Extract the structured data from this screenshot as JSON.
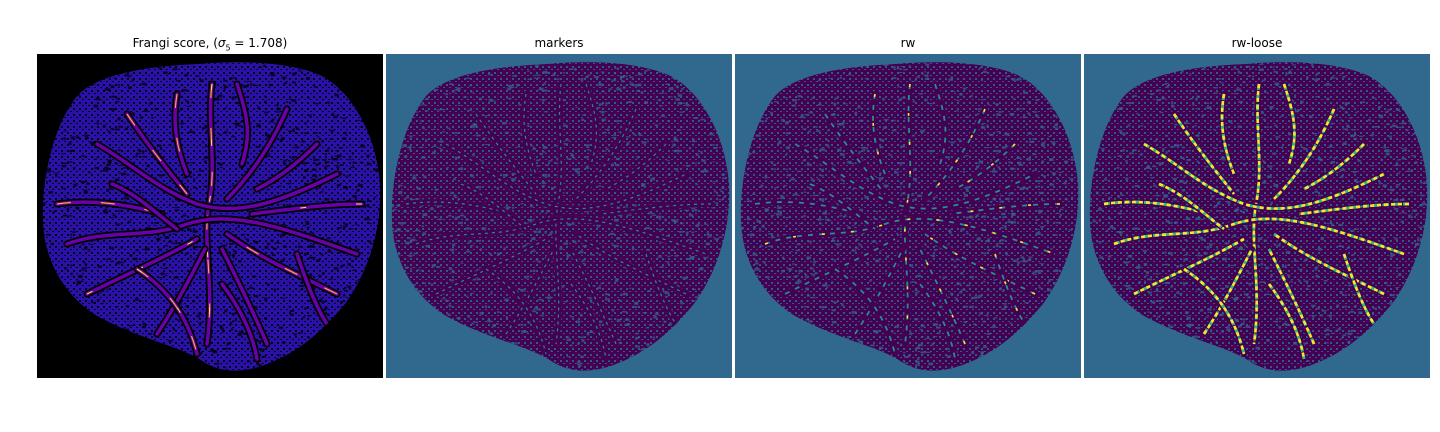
{
  "panels": [
    {
      "title_pre": "Frangi score, (",
      "title_math": "σ",
      "title_sub": "5",
      "title_post": " = 1.708)",
      "colormap": "plasma",
      "background": "#000000",
      "blob_color": "#2a12a8"
    },
    {
      "title": "markers",
      "colormap": "viridis",
      "background": "#31688e",
      "blob_color": "#440154"
    },
    {
      "title": "rw",
      "colormap": "viridis",
      "background": "#31688e",
      "blob_color": "#440154"
    },
    {
      "title": "rw-loose",
      "colormap": "viridis",
      "background": "#31688e",
      "blob_color": "#440154"
    }
  ],
  "colors": {
    "plasma_vessel": "#6a00a8",
    "plasma_hot": "#fca636",
    "plasma_peak": "#f0f921",
    "viridis_teal": "#21918c",
    "viridis_green": "#35b779",
    "viridis_yellow": "#fde725"
  }
}
